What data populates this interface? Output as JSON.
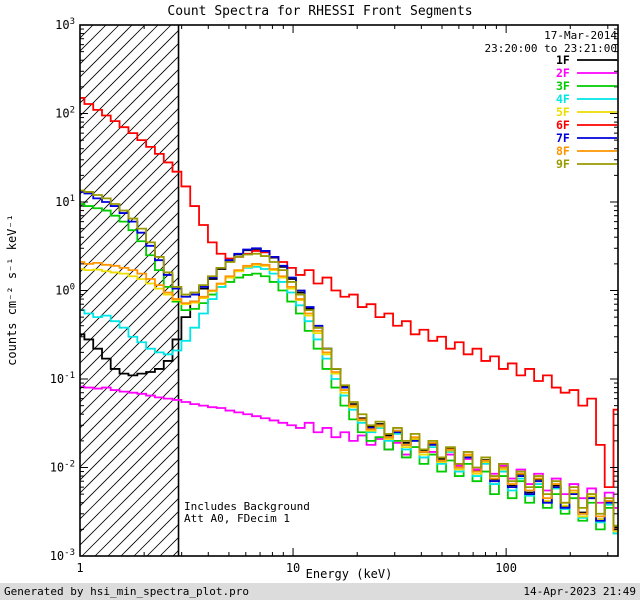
{
  "colors": {
    "background": "#ffffff",
    "axis": "#000000",
    "footer_bg": "#dcdcdc"
  },
  "header": {
    "title": "Count Spectra for RHESSI Front Segments"
  },
  "annotations": {
    "date": "17-Mar-2014",
    "time_range": "23:20:00 to 23:21:00",
    "note_line1": "Includes Background",
    "note_line2": "Att A0, FDecim 1"
  },
  "footer": {
    "left": "Generated by hsi_min_spectra_plot.pro",
    "right": "14-Apr-2023 21:49"
  },
  "chart_data": {
    "type": "line",
    "mode": "step-histogram",
    "title": "Count Spectra for RHESSI Front Segments",
    "xlabel": "Energy (keV)",
    "ylabel": "counts cm⁻² s⁻¹ keV⁻¹",
    "x_scale": "log",
    "y_scale": "log",
    "xlim": [
      1,
      335
    ],
    "ylim": [
      0.001,
      1000
    ],
    "grid": false,
    "legend_position": "upper right",
    "x_ticks": [
      {
        "value": 1,
        "label": "1"
      },
      {
        "value": 10,
        "label": "10"
      },
      {
        "value": 100,
        "label": "100"
      }
    ],
    "y_ticks": [
      {
        "value": 0.001,
        "exp": "-3",
        "label": "10⁻³"
      },
      {
        "value": 0.01,
        "exp": "-2",
        "label": "10⁻²"
      },
      {
        "value": 0.1,
        "exp": "-1",
        "label": "10⁻¹"
      },
      {
        "value": 1,
        "exp": "0",
        "label": "10⁰"
      },
      {
        "value": 10,
        "exp": "1",
        "label": "10¹"
      },
      {
        "value": 100,
        "exp": "2",
        "label": "10²"
      },
      {
        "value": 1000,
        "exp": "3",
        "label": "10³"
      }
    ],
    "excluded_region": {
      "from": 1,
      "to": 2.9,
      "style": "diagonal-hatch"
    },
    "x": [
      1,
      1.1,
      1.21,
      1.33,
      1.46,
      1.61,
      1.77,
      1.95,
      2.14,
      2.36,
      2.59,
      2.85,
      3.14,
      3.45,
      3.8,
      4.18,
      4.59,
      5.05,
      5.56,
      6.12,
      6.73,
      7.4,
      8.14,
      8.95,
      9.85,
      10.8,
      11.9,
      13.1,
      14.4,
      15.9,
      17.5,
      19.2,
      21.1,
      23.2,
      25.6,
      28.1,
      30.9,
      34,
      37.4,
      41.1,
      45.3,
      49.8,
      54.8,
      60.2,
      66.3,
      72.9,
      80.2,
      88.2,
      97,
      107,
      117,
      129,
      142,
      156,
      172,
      189,
      208,
      229,
      252,
      277,
      304,
      335
    ],
    "series": [
      {
        "name": "1F",
        "color": "#000000",
        "values": [
          0.32,
          0.28,
          0.22,
          0.17,
          0.13,
          0.115,
          0.11,
          0.115,
          0.12,
          0.13,
          0.16,
          0.28,
          0.5,
          0.75,
          1.05,
          1.35,
          1.75,
          2.15,
          2.55,
          2.85,
          2.95,
          2.75,
          2.35,
          1.85,
          1.35,
          0.95,
          0.62,
          0.38,
          0.22,
          0.13,
          0.082,
          0.052,
          0.036,
          0.029,
          0.031,
          0.023,
          0.026,
          0.019,
          0.021,
          0.0155,
          0.0185,
          0.0125,
          0.0165,
          0.0105,
          0.0135,
          0.0092,
          0.0122,
          0.0072,
          0.0102,
          0.0062,
          0.0082,
          0.0052,
          0.0072,
          0.0041,
          0.0062,
          0.0036,
          0.0051,
          0.0031,
          0.0046,
          0.0026,
          0.0041,
          0.0021
        ]
      },
      {
        "name": "2F",
        "color": "#ff00ff",
        "values": [
          0.082,
          0.08,
          0.078,
          0.08,
          0.075,
          0.072,
          0.07,
          0.068,
          0.065,
          0.062,
          0.06,
          0.058,
          0.055,
          0.052,
          0.05,
          0.048,
          0.047,
          0.044,
          0.042,
          0.04,
          0.038,
          0.036,
          0.034,
          0.032,
          0.03,
          0.028,
          0.032,
          0.025,
          0.028,
          0.022,
          0.025,
          0.02,
          0.023,
          0.018,
          0.021,
          0.016,
          0.019,
          0.014,
          0.017,
          0.013,
          0.015,
          0.0115,
          0.014,
          0.0105,
          0.0125,
          0.0095,
          0.0115,
          0.0085,
          0.0105,
          0.0075,
          0.0095,
          0.0065,
          0.0085,
          0.0055,
          0.0075,
          0.005,
          0.0065,
          0.0045,
          0.0058,
          0.004,
          0.0052,
          0.0035
        ]
      },
      {
        "name": "3F",
        "color": "#00cc00",
        "values": [
          9.5,
          9,
          8.5,
          8,
          7,
          6,
          4.8,
          3.6,
          2.5,
          1.7,
          1.1,
          0.75,
          0.6,
          0.62,
          0.72,
          0.9,
          1.1,
          1.25,
          1.4,
          1.5,
          1.55,
          1.45,
          1.25,
          1,
          0.75,
          0.55,
          0.35,
          0.22,
          0.13,
          0.08,
          0.05,
          0.035,
          0.025,
          0.02,
          0.022,
          0.016,
          0.02,
          0.013,
          0.017,
          0.011,
          0.014,
          0.009,
          0.012,
          0.008,
          0.011,
          0.007,
          0.009,
          0.005,
          0.008,
          0.0045,
          0.007,
          0.004,
          0.006,
          0.0035,
          0.005,
          0.003,
          0.0045,
          0.0025,
          0.004,
          0.002,
          0.0035,
          0.0018
        ]
      },
      {
        "name": "4F",
        "color": "#00e6e6",
        "values": [
          0.6,
          0.55,
          0.5,
          0.52,
          0.45,
          0.38,
          0.3,
          0.26,
          0.22,
          0.2,
          0.19,
          0.21,
          0.27,
          0.38,
          0.55,
          0.8,
          1.1,
          1.4,
          1.65,
          1.8,
          1.85,
          1.75,
          1.55,
          1.25,
          0.95,
          0.68,
          0.45,
          0.28,
          0.17,
          0.1,
          0.065,
          0.045,
          0.032,
          0.025,
          0.028,
          0.02,
          0.024,
          0.016,
          0.02,
          0.013,
          0.017,
          0.011,
          0.015,
          0.009,
          0.013,
          0.008,
          0.011,
          0.0065,
          0.009,
          0.0055,
          0.0075,
          0.0048,
          0.0065,
          0.004,
          0.0058,
          0.0034,
          0.005,
          0.0027,
          0.0045,
          0.0024,
          0.0038,
          0.0018
        ]
      },
      {
        "name": "5F",
        "color": "#eedd00",
        "values": [
          1.75,
          1.7,
          1.72,
          1.65,
          1.6,
          1.55,
          1.45,
          1.35,
          1.2,
          1.05,
          0.9,
          0.78,
          0.7,
          0.73,
          0.82,
          0.98,
          1.18,
          1.4,
          1.65,
          1.85,
          1.95,
          1.9,
          1.7,
          1.4,
          1.05,
          0.78,
          0.52,
          0.33,
          0.19,
          0.115,
          0.07,
          0.048,
          0.034,
          0.026,
          0.029,
          0.021,
          0.025,
          0.017,
          0.021,
          0.014,
          0.018,
          0.0115,
          0.0155,
          0.0095,
          0.0135,
          0.0085,
          0.0115,
          0.007,
          0.0095,
          0.006,
          0.008,
          0.005,
          0.007,
          0.0042,
          0.006,
          0.0037,
          0.0052,
          0.0028,
          0.0047,
          0.0026,
          0.004,
          0.0019
        ]
      },
      {
        "name": "6F",
        "color": "#ff0000",
        "values": [
          150,
          128,
          110,
          95,
          82,
          70,
          60,
          50,
          42,
          35,
          28,
          22,
          15,
          9,
          5.5,
          3.5,
          2.6,
          2.3,
          2.4,
          2.6,
          2.8,
          2.7,
          2.4,
          2.1,
          1.8,
          1.5,
          1.7,
          1.2,
          1.4,
          1.0,
          0.85,
          0.9,
          0.65,
          0.7,
          0.5,
          0.55,
          0.4,
          0.45,
          0.32,
          0.36,
          0.27,
          0.3,
          0.22,
          0.26,
          0.19,
          0.22,
          0.16,
          0.18,
          0.13,
          0.15,
          0.11,
          0.13,
          0.095,
          0.11,
          0.08,
          0.07,
          0.075,
          0.05,
          0.06,
          0.018,
          0.006,
          0.045
        ]
      },
      {
        "name": "7F",
        "color": "#0000dd",
        "values": [
          13,
          12.5,
          11,
          10,
          9,
          7.5,
          6,
          4.5,
          3.2,
          2.2,
          1.5,
          1.05,
          0.85,
          0.9,
          1.1,
          1.4,
          1.8,
          2.2,
          2.6,
          2.9,
          3.0,
          2.8,
          2.4,
          1.9,
          1.4,
          1.0,
          0.65,
          0.4,
          0.22,
          0.13,
          0.08,
          0.05,
          0.035,
          0.028,
          0.03,
          0.022,
          0.025,
          0.018,
          0.02,
          0.015,
          0.018,
          0.012,
          0.016,
          0.01,
          0.013,
          0.009,
          0.012,
          0.007,
          0.01,
          0.006,
          0.008,
          0.005,
          0.007,
          0.004,
          0.006,
          0.0035,
          0.005,
          0.003,
          0.0045,
          0.0025,
          0.004,
          0.002
        ]
      },
      {
        "name": "8F",
        "color": "#ff9500",
        "values": [
          2.1,
          2.0,
          2.05,
          1.95,
          1.9,
          1.8,
          1.7,
          1.55,
          1.35,
          1.15,
          0.95,
          0.8,
          0.72,
          0.75,
          0.85,
          1.0,
          1.2,
          1.45,
          1.7,
          1.9,
          2.0,
          1.95,
          1.75,
          1.45,
          1.1,
          0.8,
          0.55,
          0.35,
          0.2,
          0.12,
          0.075,
          0.05,
          0.035,
          0.027,
          0.03,
          0.022,
          0.026,
          0.018,
          0.022,
          0.015,
          0.019,
          0.012,
          0.016,
          0.01,
          0.014,
          0.009,
          0.012,
          0.0075,
          0.01,
          0.0065,
          0.0085,
          0.0055,
          0.0075,
          0.0045,
          0.0065,
          0.004,
          0.0055,
          0.003,
          0.005,
          0.0028,
          0.0042,
          0.002
        ]
      },
      {
        "name": "9F",
        "color": "#999900",
        "values": [
          13.5,
          13,
          12,
          11,
          9.5,
          8,
          6.5,
          5,
          3.5,
          2.4,
          1.6,
          1.1,
          0.9,
          0.95,
          1.15,
          1.45,
          1.8,
          2.1,
          2.4,
          2.55,
          2.6,
          2.45,
          2.1,
          1.7,
          1.25,
          0.9,
          0.6,
          0.38,
          0.22,
          0.13,
          0.085,
          0.055,
          0.04,
          0.03,
          0.033,
          0.024,
          0.028,
          0.02,
          0.024,
          0.016,
          0.02,
          0.013,
          0.017,
          0.011,
          0.015,
          0.01,
          0.013,
          0.008,
          0.011,
          0.007,
          0.009,
          0.006,
          0.008,
          0.005,
          0.007,
          0.004,
          0.006,
          0.0035,
          0.005,
          0.003,
          0.0045,
          0.0022
        ]
      }
    ]
  }
}
